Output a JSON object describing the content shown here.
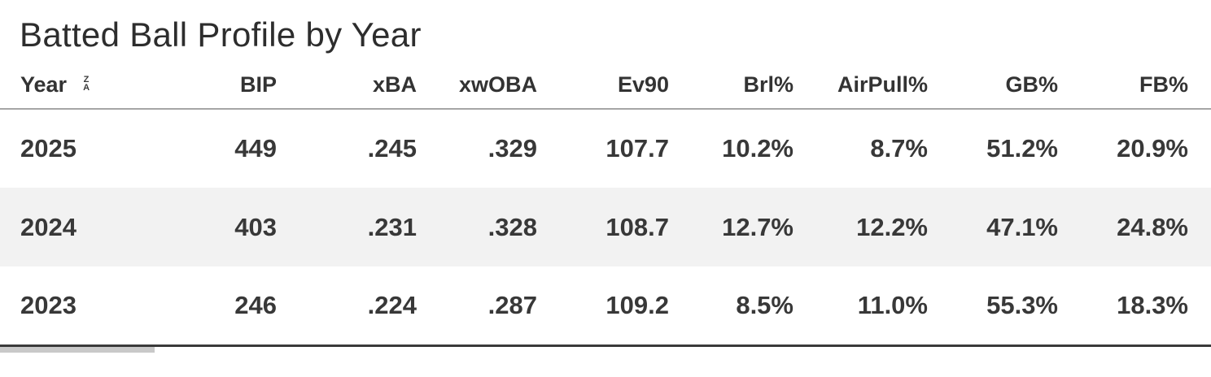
{
  "title": "Batted Ball Profile by Year",
  "header": {
    "sort_icon_top": "Z",
    "sort_icon_bottom": "A"
  },
  "colors": {
    "text": "#333333",
    "title": "#2d2d2d",
    "header_border": "#a6a6a6",
    "bottom_border": "#3a3a3a",
    "zebra_row": "#f2f2f2"
  },
  "chart_data": {
    "type": "table",
    "title": "Batted Ball Profile by Year",
    "columns": [
      "Year",
      "BIP",
      "xBA",
      "xwOBA",
      "Ev90",
      "Brl%",
      "AirPull%",
      "GB%",
      "FB%"
    ],
    "rows": [
      [
        "2025",
        "449",
        ".245",
        ".329",
        "107.7",
        "10.2%",
        "8.7%",
        "51.2%",
        "20.9%"
      ],
      [
        "2024",
        "403",
        ".231",
        ".328",
        "108.7",
        "12.7%",
        "12.2%",
        "47.1%",
        "24.8%"
      ],
      [
        "2023",
        "246",
        ".224",
        ".287",
        "109.2",
        "8.5%",
        "11.0%",
        "55.3%",
        "18.3%"
      ]
    ],
    "layout": {
      "first_column_align": "left",
      "numeric_columns_align": "right",
      "zebra_striping": true,
      "sort_indicator_column": "Year"
    }
  }
}
